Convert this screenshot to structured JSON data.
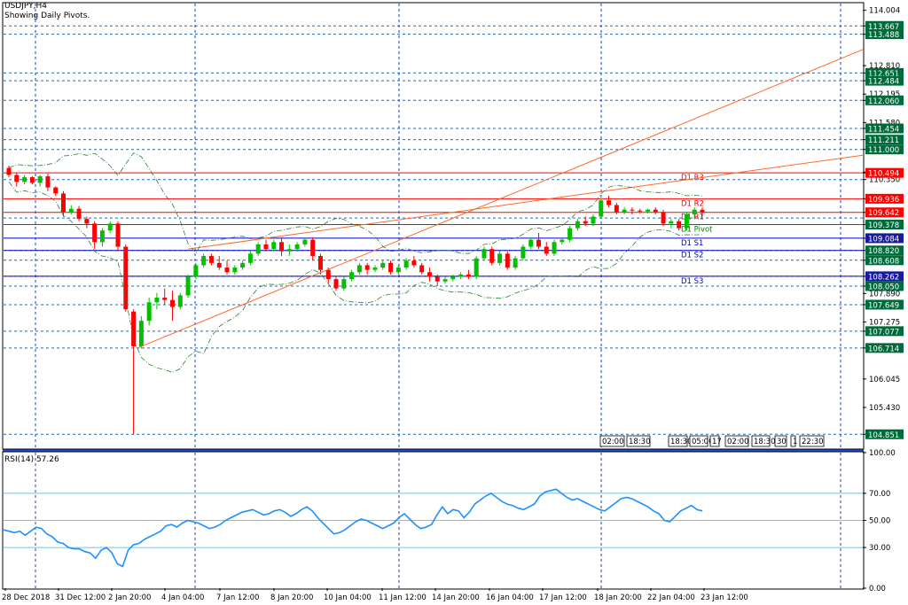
{
  "header": {
    "symbol": "USDJPY,H4",
    "indicator": "Showing Daily Pivots."
  },
  "rsi_header": {
    "label": "RSI(14) 57.26"
  },
  "colors": {
    "bull": "#00c000",
    "bear": "#ff0000",
    "channel": "#ff6a2a",
    "pivot_res": "#ff0000",
    "pivot_main": "#008000",
    "pivot_sup": "#0000cc",
    "grid": "#1a3fc0",
    "rsi": "#1e90ff",
    "tag_green": "#006b3a"
  },
  "chart_data": [
    {
      "type": "candlestick",
      "title": "USDJPY,H4",
      "ylim": [
        104.55,
        114.15
      ],
      "y_ticks": [
        "114.004",
        "113.667",
        "113.488",
        "112.810",
        "112.651",
        "112.484",
        "112.195",
        "112.060",
        "111.580",
        "111.454",
        "111.211",
        "111.000",
        "110.510",
        "110.494",
        "110.350",
        "109.936",
        "109.642",
        "109.378",
        "109.084",
        "108.820",
        "108.608",
        "108.262",
        "108.050",
        "107.890",
        "107.649",
        "107.275",
        "107.077",
        "106.714",
        "106.045",
        "105.430",
        "104.851"
      ],
      "price_tags": [
        {
          "label": "113.667",
          "value": 113.667,
          "color": "#006b3a"
        },
        {
          "label": "113.488",
          "value": 113.488,
          "color": "#006b3a"
        },
        {
          "label": "112.651",
          "value": 112.651,
          "color": "#006b3a"
        },
        {
          "label": "112.484",
          "value": 112.484,
          "color": "#006b3a"
        },
        {
          "label": "112.060",
          "value": 112.06,
          "color": "#006b3a"
        },
        {
          "label": "111.454",
          "value": 111.454,
          "color": "#006b3a"
        },
        {
          "label": "111.211",
          "value": 111.211,
          "color": "#006b3a"
        },
        {
          "label": "111.000",
          "value": 111.0,
          "color": "#006b3a"
        },
        {
          "label": "110.494",
          "value": 110.494,
          "color": "#ff0000"
        },
        {
          "label": "109.936",
          "value": 109.936,
          "color": "#ff0000"
        },
        {
          "label": "109.642",
          "value": 109.642,
          "color": "#ff0000"
        },
        {
          "label": "109.378",
          "value": 109.378,
          "color": "#006b3a"
        },
        {
          "label": "109.084",
          "value": 109.084,
          "color": "#1a1aa0"
        },
        {
          "label": "108.820",
          "value": 108.82,
          "color": "#006b3a"
        },
        {
          "label": "108.608",
          "value": 108.608,
          "color": "#006b3a"
        },
        {
          "label": "108.262",
          "value": 108.262,
          "color": "#1a1aa0"
        },
        {
          "label": "108.050",
          "value": 108.05,
          "color": "#006b3a"
        },
        {
          "label": "107.649",
          "value": 107.649,
          "color": "#006b3a"
        },
        {
          "label": "107.077",
          "value": 107.077,
          "color": "#006b3a"
        },
        {
          "label": "106.714",
          "value": 106.714,
          "color": "#006b3a"
        },
        {
          "label": "104.851",
          "value": 104.851,
          "color": "#006b3a"
        }
      ],
      "dashed_levels": [
        113.667,
        113.488,
        112.651,
        112.484,
        112.06,
        111.454,
        111.211,
        111.0,
        110.35,
        109.52,
        108.82,
        108.608,
        108.262,
        108.05,
        107.649,
        107.077,
        106.714,
        104.851
      ],
      "pivots": [
        {
          "label": "D1 R3",
          "value": 110.494,
          "kind": "res"
        },
        {
          "label": "D1 R2",
          "value": 109.936,
          "kind": "res"
        },
        {
          "label": "D1 R1",
          "value": 109.642,
          "kind": "res"
        },
        {
          "label": "D1 Pivot",
          "value": 109.378,
          "kind": "main"
        },
        {
          "label": "D1 S1",
          "value": 109.084,
          "kind": "sup"
        },
        {
          "label": "D1 S2",
          "value": 108.82,
          "kind": "sup"
        },
        {
          "label": "D1 S3",
          "value": 108.262,
          "kind": "sup"
        }
      ],
      "x_labels": [
        "28 Dec 2018",
        "31 Dec 12:00",
        "2 Jan 20:00",
        "4 Jan 04:00",
        "7 Jan 12:00",
        "8 Jan 20:00",
        "10 Jan 04:00",
        "11 Jan 12:00",
        "14 Jan 20:00",
        "16 Jan 04:00",
        "17 Jan 12:00",
        "18 Jan 20:00",
        "22 Jan 04:00",
        "23 Jan 12:00"
      ],
      "time_tags": [
        "02:00",
        "18:30",
        "18:30",
        "05:00",
        "17",
        "02:00",
        "18:30",
        "30",
        "1",
        "22:30"
      ],
      "candles": [
        [
          110.6,
          110.65,
          110.4,
          110.45
        ],
        [
          110.45,
          110.5,
          110.2,
          110.3
        ],
        [
          110.3,
          110.45,
          110.25,
          110.4
        ],
        [
          110.4,
          110.42,
          110.25,
          110.28
        ],
        [
          110.28,
          110.45,
          110.2,
          110.42
        ],
        [
          110.42,
          110.48,
          110.1,
          110.18
        ],
        [
          110.18,
          110.2,
          110.0,
          110.05
        ],
        [
          110.05,
          110.1,
          109.55,
          109.65
        ],
        [
          109.65,
          109.8,
          109.6,
          109.72
        ],
        [
          109.72,
          109.78,
          109.45,
          109.5
        ],
        [
          109.5,
          109.55,
          109.3,
          109.4
        ],
        [
          109.4,
          109.45,
          108.85,
          109.0
        ],
        [
          109.0,
          109.3,
          108.9,
          109.25
        ],
        [
          109.25,
          109.45,
          109.2,
          109.4
        ],
        [
          109.4,
          109.45,
          108.8,
          108.9
        ],
        [
          108.9,
          108.95,
          107.5,
          107.55
        ],
        [
          107.5,
          107.55,
          104.85,
          106.75
        ],
        [
          106.75,
          107.4,
          106.7,
          107.3
        ],
        [
          107.3,
          107.8,
          107.2,
          107.7
        ],
        [
          107.7,
          107.9,
          107.55,
          107.8
        ],
        [
          107.8,
          108.0,
          107.65,
          107.75
        ],
        [
          107.75,
          107.95,
          107.3,
          107.6
        ],
        [
          107.6,
          107.9,
          107.55,
          107.85
        ],
        [
          107.85,
          108.3,
          107.8,
          108.25
        ],
        [
          108.25,
          108.55,
          108.2,
          108.5
        ],
        [
          108.5,
          108.75,
          108.45,
          108.7
        ],
        [
          108.7,
          108.75,
          108.5,
          108.55
        ],
        [
          108.55,
          108.7,
          108.4,
          108.45
        ],
        [
          108.45,
          108.6,
          108.3,
          108.35
        ],
        [
          108.35,
          108.5,
          108.3,
          108.45
        ],
        [
          108.45,
          108.6,
          108.4,
          108.55
        ],
        [
          108.55,
          108.8,
          108.5,
          108.75
        ],
        [
          108.75,
          109.0,
          108.7,
          108.95
        ],
        [
          108.95,
          109.05,
          108.8,
          108.85
        ],
        [
          108.85,
          109.05,
          108.8,
          109.0
        ],
        [
          109.0,
          109.1,
          108.7,
          108.8
        ],
        [
          108.8,
          108.95,
          108.7,
          108.85
        ],
        [
          108.85,
          109.0,
          108.8,
          108.95
        ],
        [
          108.95,
          109.1,
          108.9,
          109.05
        ],
        [
          109.05,
          109.1,
          108.6,
          108.7
        ],
        [
          108.7,
          108.75,
          108.3,
          108.4
        ],
        [
          108.4,
          108.45,
          108.1,
          108.2
        ],
        [
          108.2,
          108.25,
          107.95,
          108.0
        ],
        [
          108.0,
          108.25,
          107.95,
          108.2
        ],
        [
          108.2,
          108.4,
          108.15,
          108.35
        ],
        [
          108.35,
          108.55,
          108.3,
          108.5
        ],
        [
          108.5,
          108.55,
          108.3,
          108.4
        ],
        [
          108.4,
          108.5,
          108.35,
          108.45
        ],
        [
          108.45,
          108.6,
          108.4,
          108.55
        ],
        [
          108.55,
          108.6,
          108.3,
          108.35
        ],
        [
          108.35,
          108.5,
          108.3,
          108.45
        ],
        [
          108.45,
          108.65,
          108.4,
          108.6
        ],
        [
          108.6,
          108.7,
          108.45,
          108.5
        ],
        [
          108.5,
          108.55,
          108.3,
          108.35
        ],
        [
          108.35,
          108.45,
          108.15,
          108.25
        ],
        [
          108.25,
          108.3,
          108.05,
          108.15
        ],
        [
          108.15,
          108.25,
          108.1,
          108.2
        ],
        [
          108.2,
          108.3,
          108.15,
          108.25
        ],
        [
          108.25,
          108.35,
          108.2,
          108.3
        ],
        [
          108.3,
          108.4,
          108.2,
          108.25
        ],
        [
          108.25,
          108.7,
          108.2,
          108.65
        ],
        [
          108.65,
          108.9,
          108.6,
          108.85
        ],
        [
          108.85,
          108.9,
          108.5,
          108.55
        ],
        [
          108.55,
          108.8,
          108.5,
          108.75
        ],
        [
          108.75,
          108.8,
          108.4,
          108.45
        ],
        [
          108.45,
          108.7,
          108.4,
          108.65
        ],
        [
          108.65,
          108.95,
          108.6,
          108.9
        ],
        [
          108.9,
          109.1,
          108.85,
          109.05
        ],
        [
          109.05,
          109.2,
          108.85,
          108.9
        ],
        [
          108.9,
          109.0,
          108.7,
          108.75
        ],
        [
          108.75,
          109.05,
          108.7,
          109.0
        ],
        [
          109.0,
          109.1,
          108.95,
          109.05
        ],
        [
          109.05,
          109.35,
          109.0,
          109.3
        ],
        [
          109.3,
          109.5,
          109.25,
          109.45
        ],
        [
          109.45,
          109.55,
          109.35,
          109.4
        ],
        [
          109.4,
          109.6,
          109.35,
          109.55
        ],
        [
          109.55,
          109.95,
          109.5,
          109.9
        ],
        [
          109.9,
          110.0,
          109.75,
          109.8
        ],
        [
          109.8,
          109.85,
          109.6,
          109.65
        ],
        [
          109.65,
          109.75,
          109.6,
          109.7
        ],
        [
          109.7,
          109.75,
          109.6,
          109.68
        ],
        [
          109.68,
          109.72,
          109.62,
          109.66
        ],
        [
          109.66,
          109.72,
          109.62,
          109.7
        ],
        [
          109.7,
          109.75,
          109.6,
          109.65
        ],
        [
          109.65,
          109.7,
          109.35,
          109.4
        ],
        [
          109.4,
          109.5,
          109.3,
          109.45
        ],
        [
          109.45,
          109.5,
          109.25,
          109.3
        ],
        [
          109.3,
          109.65,
          109.25,
          109.6
        ],
        [
          109.6,
          109.75,
          109.5,
          109.7
        ],
        [
          109.7,
          109.75,
          109.55,
          109.64
        ]
      ]
    },
    {
      "type": "line",
      "title": "RSI(14) 57.26",
      "ylim": [
        0,
        100
      ],
      "y_ticks": [
        "100.00",
        "70.00",
        "50.00",
        "30.00",
        "0.00"
      ],
      "levels": [
        70,
        50,
        30
      ],
      "values": [
        43,
        42,
        41,
        42,
        39,
        42,
        45,
        44,
        40,
        38,
        34,
        33,
        30,
        29,
        29,
        27,
        26,
        22,
        28,
        30,
        26,
        18,
        16,
        28,
        32,
        33,
        36,
        38,
        40,
        42,
        46,
        47,
        45,
        48,
        50,
        49,
        48,
        46,
        44,
        45,
        47,
        50,
        52,
        54,
        56,
        57,
        58,
        56,
        54,
        55,
        57,
        58,
        56,
        53,
        55,
        58,
        60,
        57,
        52,
        48,
        44,
        40,
        41,
        43,
        46,
        49,
        51,
        50,
        48,
        46,
        44,
        46,
        48,
        52,
        55,
        51,
        47,
        44,
        45,
        47,
        54,
        60,
        55,
        58,
        57,
        52,
        56,
        62,
        65,
        68,
        70,
        67,
        64,
        62,
        61,
        59,
        58,
        60,
        62,
        68,
        71,
        72,
        73,
        70,
        67,
        65,
        66,
        64,
        62,
        60,
        58,
        57,
        60,
        63,
        66,
        67,
        66,
        64,
        62,
        60,
        57,
        55,
        50,
        49,
        53,
        57,
        59,
        61,
        58,
        57
      ]
    }
  ]
}
